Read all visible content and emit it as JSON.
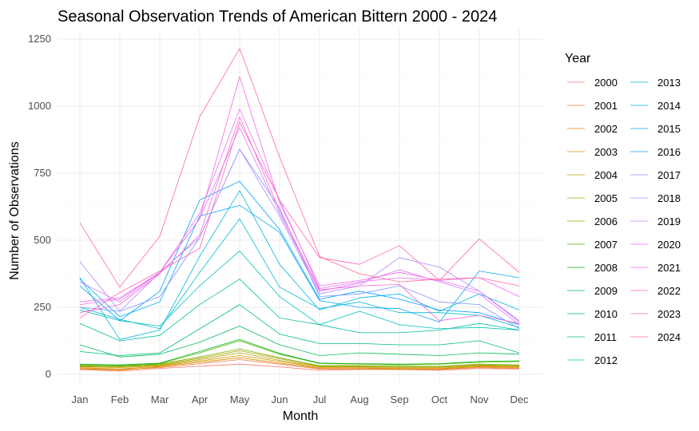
{
  "chart_data": {
    "type": "line",
    "title": "Seasonal Observation Trends of American Bittern 2000 - 2024",
    "xlabel": "Month",
    "ylabel": "Number of Observations",
    "legend_title": "Year",
    "legend_position": "right",
    "grid": true,
    "ylim": [
      0,
      1250
    ],
    "yticks": [
      0,
      250,
      500,
      750,
      1000,
      1250
    ],
    "categories": [
      "Jan",
      "Feb",
      "Mar",
      "Apr",
      "May",
      "Jun",
      "Jul",
      "Aug",
      "Sep",
      "Oct",
      "Nov",
      "Dec"
    ],
    "series": [
      {
        "name": "2000",
        "color": "#F8766D",
        "values": [
          18,
          12,
          22,
          30,
          38,
          28,
          15,
          18,
          18,
          15,
          22,
          20
        ]
      },
      {
        "name": "2001",
        "color": "#EE8043",
        "values": [
          22,
          18,
          25,
          40,
          55,
          38,
          20,
          20,
          18,
          18,
          25,
          22
        ]
      },
      {
        "name": "2002",
        "color": "#E18A00",
        "values": [
          20,
          15,
          28,
          45,
          62,
          42,
          22,
          22,
          20,
          20,
          28,
          25
        ]
      },
      {
        "name": "2003",
        "color": "#D09400",
        "values": [
          25,
          20,
          30,
          50,
          70,
          48,
          25,
          25,
          22,
          22,
          30,
          28
        ]
      },
      {
        "name": "2004",
        "color": "#BB9D00",
        "values": [
          28,
          25,
          32,
          55,
          80,
          52,
          28,
          28,
          25,
          25,
          32,
          30
        ]
      },
      {
        "name": "2005",
        "color": "#A3A500",
        "values": [
          30,
          28,
          35,
          60,
          88,
          58,
          30,
          30,
          28,
          28,
          35,
          32
        ]
      },
      {
        "name": "2006",
        "color": "#86AC00",
        "values": [
          32,
          30,
          38,
          65,
          95,
          62,
          32,
          32,
          30,
          30,
          38,
          35
        ]
      },
      {
        "name": "2007",
        "color": "#5DB200",
        "values": [
          35,
          32,
          40,
          80,
          125,
          75,
          40,
          38,
          35,
          38,
          45,
          48
        ]
      },
      {
        "name": "2008",
        "color": "#00B81F",
        "values": [
          38,
          35,
          42,
          85,
          130,
          78,
          42,
          40,
          38,
          40,
          48,
          50
        ]
      },
      {
        "name": "2009",
        "color": "#00BC59",
        "values": [
          110,
          65,
          75,
          120,
          180,
          110,
          70,
          80,
          75,
          70,
          80,
          75
        ]
      },
      {
        "name": "2010",
        "color": "#00BF7D",
        "values": [
          85,
          70,
          80,
          170,
          260,
          150,
          115,
          115,
          110,
          110,
          125,
          80
        ]
      },
      {
        "name": "2011",
        "color": "#00C19C",
        "values": [
          190,
          125,
          145,
          260,
          355,
          210,
          185,
          155,
          155,
          165,
          190,
          165
        ]
      },
      {
        "name": "2012",
        "color": "#00C0B7",
        "values": [
          240,
          200,
          180,
          330,
          460,
          290,
          185,
          235,
          185,
          170,
          175,
          165
        ]
      },
      {
        "name": "2013",
        "color": "#00BCCF",
        "values": [
          250,
          205,
          170,
          380,
          580,
          325,
          245,
          270,
          230,
          230,
          220,
          175
        ]
      },
      {
        "name": "2014",
        "color": "#00B6E4",
        "values": [
          360,
          130,
          165,
          440,
          685,
          410,
          240,
          285,
          300,
          235,
          300,
          240
        ]
      },
      {
        "name": "2015",
        "color": "#00ADF5",
        "values": [
          355,
          215,
          270,
          590,
          630,
          530,
          275,
          250,
          245,
          195,
          385,
          360
        ]
      },
      {
        "name": "2016",
        "color": "#00A1FF",
        "values": [
          330,
          200,
          310,
          650,
          720,
          540,
          280,
          310,
          280,
          240,
          230,
          185
        ]
      },
      {
        "name": "2017",
        "color": "#7F96FF",
        "values": [
          250,
          235,
          290,
          510,
          840,
          620,
          290,
          300,
          330,
          270,
          260,
          170
        ]
      },
      {
        "name": "2018",
        "color": "#AF88FF",
        "values": [
          420,
          235,
          380,
          510,
          840,
          590,
          300,
          330,
          435,
          400,
          310,
          200
        ]
      },
      {
        "name": "2019",
        "color": "#D27CFF",
        "values": [
          345,
          270,
          380,
          580,
          920,
          600,
          310,
          340,
          390,
          345,
          300,
          185
        ]
      },
      {
        "name": "2020",
        "color": "#EA70F6",
        "values": [
          270,
          285,
          380,
          600,
          990,
          650,
          320,
          345,
          360,
          350,
          310,
          195
        ]
      },
      {
        "name": "2021",
        "color": "#F867E6",
        "values": [
          260,
          280,
          380,
          580,
          1110,
          640,
          330,
          350,
          380,
          350,
          360,
          290
        ]
      },
      {
        "name": "2022",
        "color": "#FE62D1",
        "values": [
          230,
          260,
          375,
          520,
          960,
          610,
          315,
          330,
          335,
          200,
          220,
          190
        ]
      },
      {
        "name": "2023",
        "color": "#FF64B8",
        "values": [
          210,
          305,
          385,
          470,
          940,
          650,
          435,
          410,
          480,
          350,
          505,
          380
        ]
      },
      {
        "name": "2024",
        "color": "#FF6A99",
        "values": [
          565,
          325,
          515,
          960,
          1215,
          810,
          440,
          375,
          345,
          355,
          360,
          330
        ]
      }
    ]
  }
}
